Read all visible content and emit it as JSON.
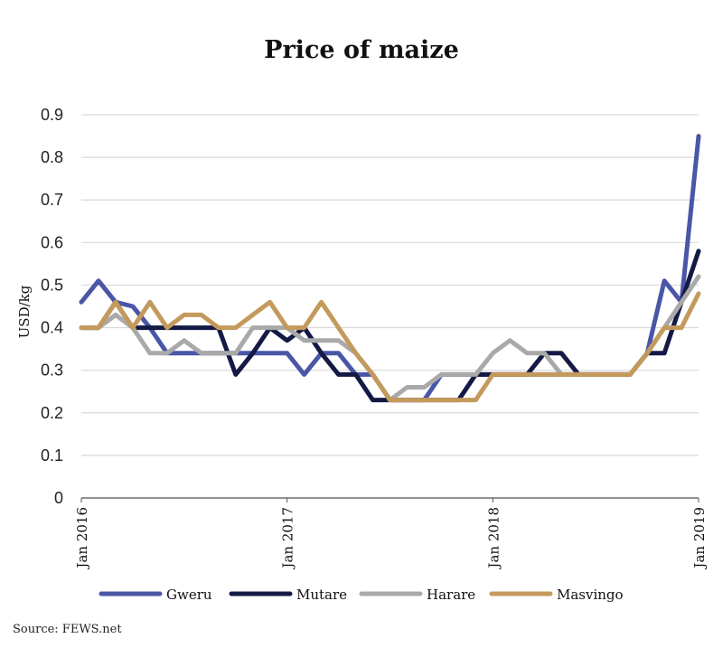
{
  "chart_data": {
    "type": "line",
    "title": "Price of maize",
    "ylabel": "USD/kg",
    "xlabel": "",
    "ylim": [
      0,
      0.9
    ],
    "yticks": [
      "0",
      "0.1",
      "0.2",
      "0.3",
      "0.4",
      "0.5",
      "0.6",
      "0.7",
      "0.8",
      "0.9"
    ],
    "x_tick_labels": [
      "Jan 2016",
      "Jan 2017",
      "Jan 2018",
      "Jan 2019"
    ],
    "x": [
      "Jan 2016",
      "Feb 2016",
      "Mar 2016",
      "Apr 2016",
      "May 2016",
      "Jun 2016",
      "Jul 2016",
      "Aug 2016",
      "Sep 2016",
      "Oct 2016",
      "Nov 2016",
      "Dec 2016",
      "Jan 2017",
      "Feb 2017",
      "Mar 2017",
      "Apr 2017",
      "May 2017",
      "Jun 2017",
      "Jul 2017",
      "Aug 2017",
      "Sep 2017",
      "Oct 2017",
      "Nov 2017",
      "Dec 2017",
      "Jan 2018",
      "Feb 2018",
      "Mar 2018",
      "Apr 2018",
      "May 2018",
      "Jun 2018",
      "Jul 2018",
      "Aug 2018",
      "Sep 2018",
      "Oct 2018",
      "Nov 2018",
      "Dec 2018",
      "Jan 2019"
    ],
    "grid": true,
    "legend_position": "bottom",
    "series": [
      {
        "name": "Gweru",
        "color": "#4a56a6",
        "values": [
          0.46,
          0.51,
          0.46,
          0.45,
          0.4,
          0.34,
          0.34,
          0.34,
          0.34,
          0.34,
          0.34,
          0.34,
          0.34,
          0.29,
          0.34,
          0.34,
          0.29,
          0.29,
          0.23,
          0.23,
          0.23,
          0.29,
          0.29,
          0.29,
          0.29,
          0.29,
          0.29,
          0.29,
          0.29,
          0.29,
          0.29,
          0.29,
          0.29,
          0.34,
          0.51,
          0.46,
          0.85
        ]
      },
      {
        "name": "Mutare",
        "color": "#141a45",
        "values": [
          0.4,
          0.4,
          0.46,
          0.4,
          0.4,
          0.4,
          0.4,
          0.4,
          0.4,
          0.29,
          0.34,
          0.4,
          0.37,
          0.4,
          0.34,
          0.29,
          0.29,
          0.23,
          0.23,
          0.23,
          0.23,
          0.23,
          0.23,
          0.29,
          0.29,
          0.29,
          0.29,
          0.34,
          0.34,
          0.29,
          0.29,
          0.29,
          0.29,
          0.34,
          0.34,
          0.46,
          0.58
        ]
      },
      {
        "name": "Harare",
        "color": "#a9a9a9",
        "values": [
          0.4,
          0.4,
          0.43,
          0.4,
          0.34,
          0.34,
          0.37,
          0.34,
          0.34,
          0.34,
          0.4,
          0.4,
          0.4,
          0.37,
          0.37,
          0.37,
          0.34,
          0.29,
          0.23,
          0.26,
          0.26,
          0.29,
          0.29,
          0.29,
          0.34,
          0.37,
          0.34,
          0.34,
          0.29,
          0.29,
          0.29,
          0.29,
          0.29,
          0.34,
          0.4,
          0.46,
          0.52
        ]
      },
      {
        "name": "Masvingo",
        "color": "#c49a5c",
        "values": [
          0.4,
          0.4,
          0.46,
          0.4,
          0.46,
          0.4,
          0.43,
          0.43,
          0.4,
          0.4,
          0.43,
          0.46,
          0.4,
          0.4,
          0.46,
          0.4,
          0.34,
          0.29,
          0.23,
          0.23,
          0.23,
          0.23,
          0.23,
          0.23,
          0.29,
          0.29,
          0.29,
          0.29,
          0.29,
          0.29,
          0.29,
          0.29,
          0.29,
          0.34,
          0.4,
          0.4,
          0.48
        ]
      }
    ]
  },
  "source": "Source: FEWS.net"
}
